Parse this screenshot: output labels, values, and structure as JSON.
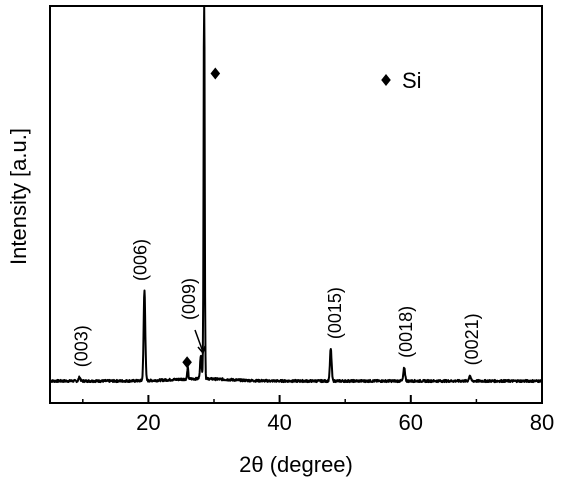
{
  "chart_data": {
    "type": "line",
    "xlabel": "2θ (degree)",
    "ylabel": "Intensity [a.u.]",
    "xlim": [
      5,
      80
    ],
    "x_ticks": [
      20,
      40,
      60,
      80
    ],
    "x_tick_labels": [
      "20",
      "40",
      "60",
      "80"
    ],
    "y_ticks_shown": false,
    "grid": false,
    "legend": {
      "position": "top-right",
      "entries": [
        {
          "marker": "diamond",
          "label": "Si"
        }
      ]
    },
    "peaks": [
      {
        "label": "(003)",
        "x": 9.5,
        "rel_height": 0.01
      },
      {
        "label": "(006)",
        "x": 19.4,
        "rel_height": 0.24
      },
      {
        "label": "(009)",
        "x": 28.0,
        "rel_height": 0.06
      },
      {
        "label": "(0015)",
        "x": 47.8,
        "rel_height": 0.085
      },
      {
        "label": "(0018)",
        "x": 59.0,
        "rel_height": 0.035
      },
      {
        "label": "(0021)",
        "x": 69.0,
        "rel_height": 0.015
      }
    ],
    "si_peaks": [
      {
        "x": 28.5,
        "rel_height": 1.05
      },
      {
        "x": 26.0,
        "rel_height": 0.03
      }
    ],
    "si_markers": [
      {
        "x": 30.2,
        "rel_height": 0.82
      },
      {
        "x": 25.9,
        "rel_height": 0.05
      }
    ]
  },
  "legend_label": "Si",
  "colors": {
    "line": "#000000",
    "background": "#ffffff"
  }
}
